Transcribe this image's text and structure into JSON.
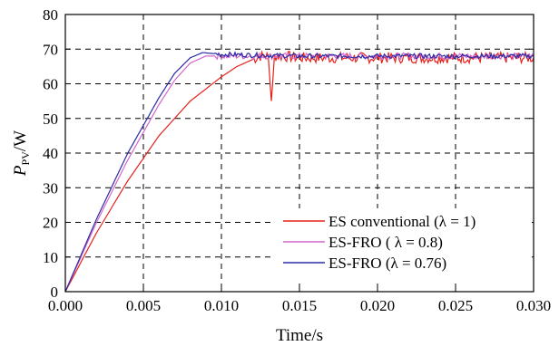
{
  "chart_data": {
    "type": "line",
    "xlabel": "Time/s",
    "ylabel_main": "P",
    "ylabel_sub": "PV",
    "ylabel_unit": "/W",
    "xlim": [
      0,
      0.03
    ],
    "ylim": [
      0,
      80
    ],
    "x_ticks": [
      "0.000",
      "0.005",
      "0.010",
      "0.015",
      "0.020",
      "0.025",
      "0.030"
    ],
    "y_ticks": [
      "0",
      "10",
      "20",
      "30",
      "40",
      "50",
      "60",
      "70",
      "80"
    ],
    "grid": true,
    "legend_position": "bottom-right",
    "series": [
      {
        "name": "ES conventional (λ = 1)",
        "color": "#e8201a",
        "x": [
          0,
          0.002,
          0.004,
          0.006,
          0.008,
          0.01,
          0.011,
          0.012,
          0.0125,
          0.013,
          0.0132,
          0.0134,
          0.014,
          0.015,
          0.02,
          0.025,
          0.03
        ],
        "y": [
          0,
          17,
          32,
          45,
          55,
          62,
          65,
          67,
          68,
          68,
          55,
          68,
          68,
          67.5,
          67.5,
          67.5,
          67.5
        ]
      },
      {
        "name": "ES-FRO ( λ = 0.8)",
        "color": "#d266c9",
        "x": [
          0,
          0.002,
          0.004,
          0.005,
          0.006,
          0.007,
          0.008,
          0.009,
          0.01,
          0.012,
          0.015,
          0.02,
          0.025,
          0.03
        ],
        "y": [
          0,
          20,
          38,
          46,
          54,
          61,
          66,
          68,
          68,
          68,
          68,
          68,
          68,
          68
        ]
      },
      {
        "name": "ES-FRO (λ = 0.76)",
        "color": "#2b2ba8",
        "x": [
          0,
          0.002,
          0.004,
          0.005,
          0.006,
          0.007,
          0.008,
          0.0088,
          0.01,
          0.012,
          0.015,
          0.02,
          0.025,
          0.03
        ],
        "y": [
          0,
          21,
          40,
          48,
          56,
          63,
          67.5,
          69,
          68.5,
          68.3,
          68,
          68,
          68,
          68
        ]
      }
    ]
  },
  "colors": {
    "grid": "#000000",
    "axis": "#000000"
  }
}
